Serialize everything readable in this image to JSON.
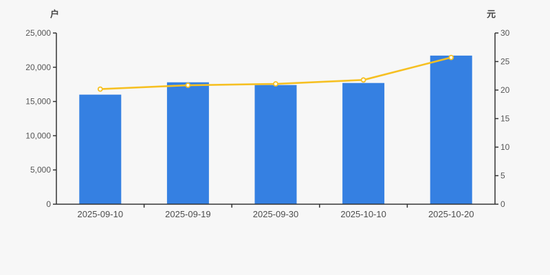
{
  "page": {
    "background": "#f7f7f7"
  },
  "chart_data": {
    "type": "bar",
    "title": "",
    "legend": "none",
    "grid": false,
    "categories": [
      "2025-09-10",
      "2025-09-19",
      "2025-09-30",
      "2025-10-10",
      "2025-10-20"
    ],
    "series": [
      {
        "name": "bar-series",
        "type": "bar",
        "axis": "left",
        "color": "#3580e2",
        "values": [
          16000,
          17800,
          17400,
          17700,
          21700
        ]
      },
      {
        "name": "line-series",
        "type": "line",
        "axis": "right",
        "color": "#f6c022",
        "marker_fill": "#ffffff",
        "values": [
          20.17,
          20.84,
          21.08,
          21.77,
          25.71
        ]
      }
    ],
    "left_axis": {
      "name": "户",
      "min": 0,
      "max": 25000,
      "ticks": [
        0,
        5000,
        10000,
        15000,
        20000,
        25000
      ]
    },
    "right_axis": {
      "name": "元",
      "min": 0,
      "max": 30,
      "ticks": [
        0,
        5,
        10,
        15,
        20,
        25,
        30
      ]
    },
    "style": {
      "axis_color": "#333333",
      "tick_label_color": "#555555",
      "x_label_color": "#4d4d4d"
    }
  }
}
